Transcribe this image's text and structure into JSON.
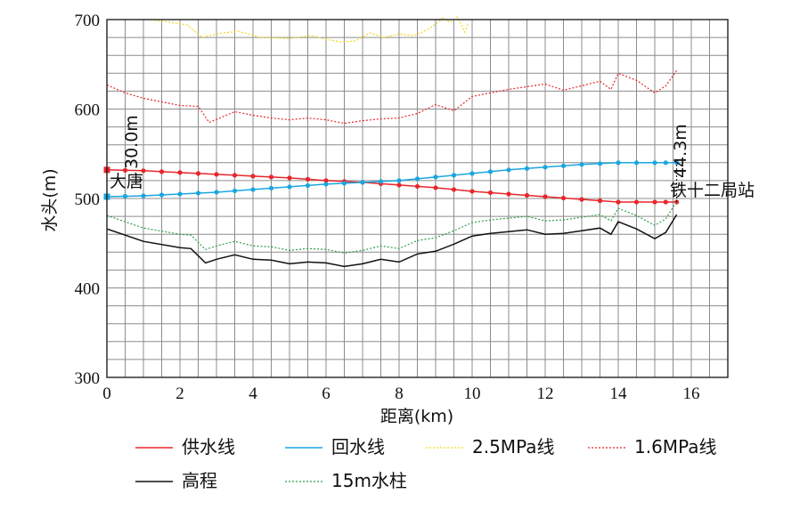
{
  "chart_data": {
    "type": "line",
    "xlabel": "距离(km)",
    "ylabel": "水头(m)",
    "xlim": [
      0,
      17
    ],
    "ylim": [
      300,
      700
    ],
    "grid": true,
    "legend_placement": "bottom",
    "x_tick_labels": [
      "0",
      "2",
      "4",
      "6",
      "8",
      "10",
      "12",
      "14",
      "16"
    ],
    "y_tick_labels": [
      "300",
      "400",
      "500",
      "600",
      "700"
    ],
    "annotations": {
      "start_station": "大唐",
      "end_station": "铁十二局站",
      "start_gap": "30.0m",
      "end_gap": "44.3m"
    },
    "series": [
      {
        "name": "供水线",
        "color": "#e8262b",
        "style": "solid-markers",
        "x": [
          0,
          1,
          2,
          3,
          4,
          5,
          6,
          7,
          8,
          9,
          10,
          11,
          12,
          13,
          14,
          15,
          15.6
        ],
        "y": [
          532,
          531,
          529,
          527,
          525,
          523,
          520,
          518,
          515,
          512,
          508,
          505,
          502,
          499,
          496,
          496,
          496
        ]
      },
      {
        "name": "回水线",
        "color": "#1aa6e0",
        "style": "solid-markers",
        "x": [
          0,
          1,
          2,
          3,
          4,
          5,
          6,
          7,
          8,
          9,
          10,
          11,
          12,
          13,
          14,
          15,
          15.6
        ],
        "y": [
          502,
          503,
          505,
          507,
          510,
          513,
          516,
          518,
          520,
          524,
          528,
          532,
          535,
          538,
          540,
          540,
          540
        ]
      },
      {
        "name": "2.5MPa线",
        "color": "#f2d61c",
        "style": "dotted",
        "x": [
          1.2,
          2.2,
          2.6,
          3,
          3.6,
          4.2,
          5,
          5.6,
          6,
          6.4,
          6.8,
          7.2,
          7.6,
          8,
          8.4,
          8.8,
          9,
          9.2,
          9.4,
          9.6,
          9.8,
          9.9
        ],
        "y": [
          700,
          694,
          680,
          684,
          687,
          680,
          679,
          682,
          678,
          675,
          676,
          685,
          680,
          684,
          682,
          689,
          695,
          702,
          697,
          703,
          686,
          697
        ]
      },
      {
        "name": "1.6MPa线",
        "color": "#e8262b",
        "style": "dotted",
        "x": [
          0,
          0.5,
          1,
          2,
          2.5,
          2.8,
          3.5,
          4,
          4.5,
          5,
          5.5,
          6,
          6.5,
          7,
          7.5,
          8,
          8.5,
          9,
          9.5,
          10,
          11,
          12,
          12.5,
          13,
          13.5,
          13.8,
          14,
          14.5,
          15,
          15.3,
          15.6
        ],
        "y": [
          627,
          618,
          612,
          604,
          603,
          585,
          597,
          593,
          590,
          588,
          590,
          588,
          584,
          587,
          589,
          590,
          595,
          605,
          598,
          614,
          622,
          628,
          621,
          626,
          631,
          622,
          640,
          632,
          618,
          626,
          643
        ]
      },
      {
        "name": "高程",
        "color": "#111111",
        "style": "solid",
        "x": [
          0,
          1,
          2,
          2.3,
          2.7,
          3,
          3.5,
          4,
          4.5,
          5,
          5.5,
          6,
          6.5,
          7,
          7.5,
          8,
          8.5,
          9,
          9.5,
          10,
          10.5,
          11,
          11.5,
          12,
          12.5,
          13,
          13.5,
          13.8,
          14,
          14.5,
          15,
          15.3,
          15.6
        ],
        "y": [
          466,
          452,
          445,
          444,
          428,
          432,
          437,
          432,
          431,
          427,
          429,
          428,
          424,
          427,
          432,
          429,
          438,
          441,
          449,
          458,
          461,
          463,
          465,
          460,
          461,
          464,
          467,
          460,
          474,
          466,
          455,
          462,
          482
        ]
      },
      {
        "name": "15m水柱",
        "color": "#2f9e44",
        "style": "dotted",
        "x": [
          0,
          1,
          2,
          2.3,
          2.7,
          3,
          3.5,
          4,
          4.5,
          5,
          5.5,
          6,
          6.5,
          7,
          7.5,
          8,
          8.5,
          9,
          9.5,
          10,
          10.5,
          11,
          11.5,
          12,
          12.5,
          13,
          13.5,
          13.8,
          14,
          14.5,
          15,
          15.3,
          15.6
        ],
        "y": [
          481,
          467,
          460,
          459,
          443,
          447,
          452,
          447,
          446,
          442,
          444,
          443,
          439,
          442,
          447,
          444,
          453,
          456,
          464,
          473,
          476,
          478,
          480,
          475,
          476,
          479,
          482,
          475,
          489,
          481,
          470,
          477,
          497
        ]
      }
    ]
  }
}
